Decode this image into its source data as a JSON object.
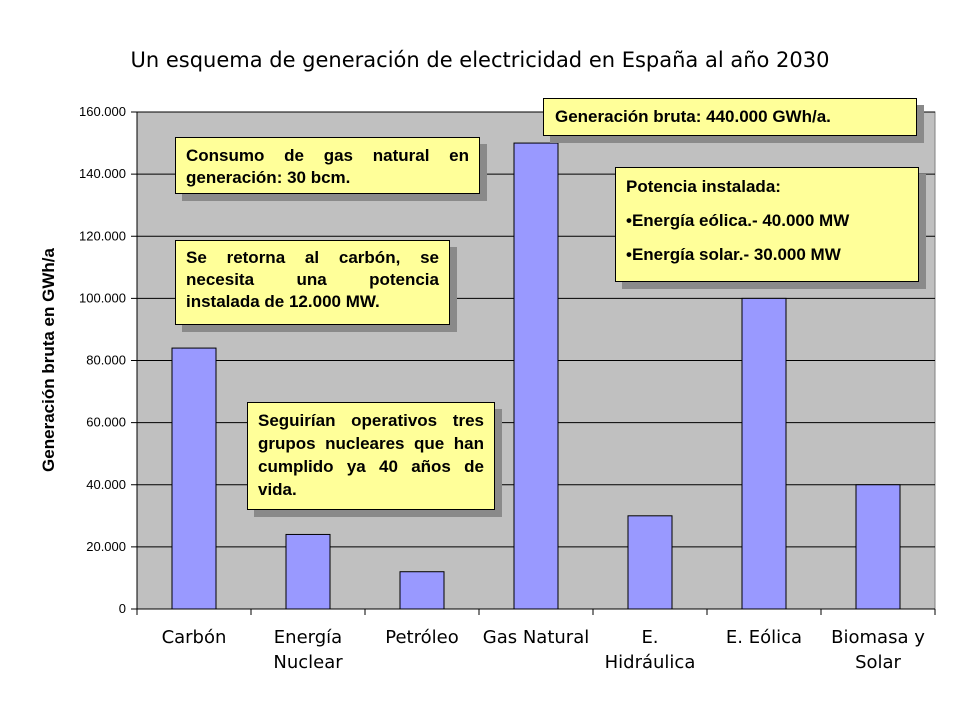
{
  "chart_data": {
    "type": "bar",
    "title": "Un esquema de generación de electricidad en España al año 2030",
    "xlabel": "",
    "ylabel": "Generación bruta en GWh/a",
    "categories": [
      [
        "Carbón"
      ],
      [
        "Energía",
        "Nuclear"
      ],
      [
        "Petróleo"
      ],
      [
        "Gas Natural"
      ],
      [
        "E.",
        "Hidráulica"
      ],
      [
        "E. Eólica"
      ],
      [
        "Biomasa y",
        "Solar"
      ]
    ],
    "values": [
      84000,
      24000,
      12000,
      150000,
      30000,
      100000,
      40000
    ],
    "ylim": [
      0,
      160000
    ],
    "yticks": [
      0,
      20000,
      40000,
      60000,
      80000,
      100000,
      120000,
      140000,
      160000
    ],
    "ytick_labels": [
      "0",
      "20.000",
      "40.000",
      "60.000",
      "80.000",
      "100.000",
      "120.000",
      "140.000",
      "160.000"
    ],
    "grid": true,
    "legend": "none",
    "colors": {
      "plot_background": "#c0c0c0",
      "bar_fill": "#9999ff",
      "bar_stroke": "#000000",
      "callout_fill": "#ffff99",
      "shadow": "#8a8a8a"
    }
  },
  "annotations": {
    "total": "Generación bruta: 440.000 GWh/a.",
    "gas": "Consumo de gas natural en generación: 30 bcm.",
    "coal": "Se retorna al carbón, se necesita una potencia instalada de 12.000 MW.",
    "nuclear": "Seguirían operativos tres grupos nucleares que han cumplido ya 40 años de vida.",
    "capacity": {
      "heading": "Potencia instalada:",
      "items": [
        "Energía eólica.- 40.000 MW",
        "Energía solar.- 30.000 MW"
      ]
    }
  }
}
